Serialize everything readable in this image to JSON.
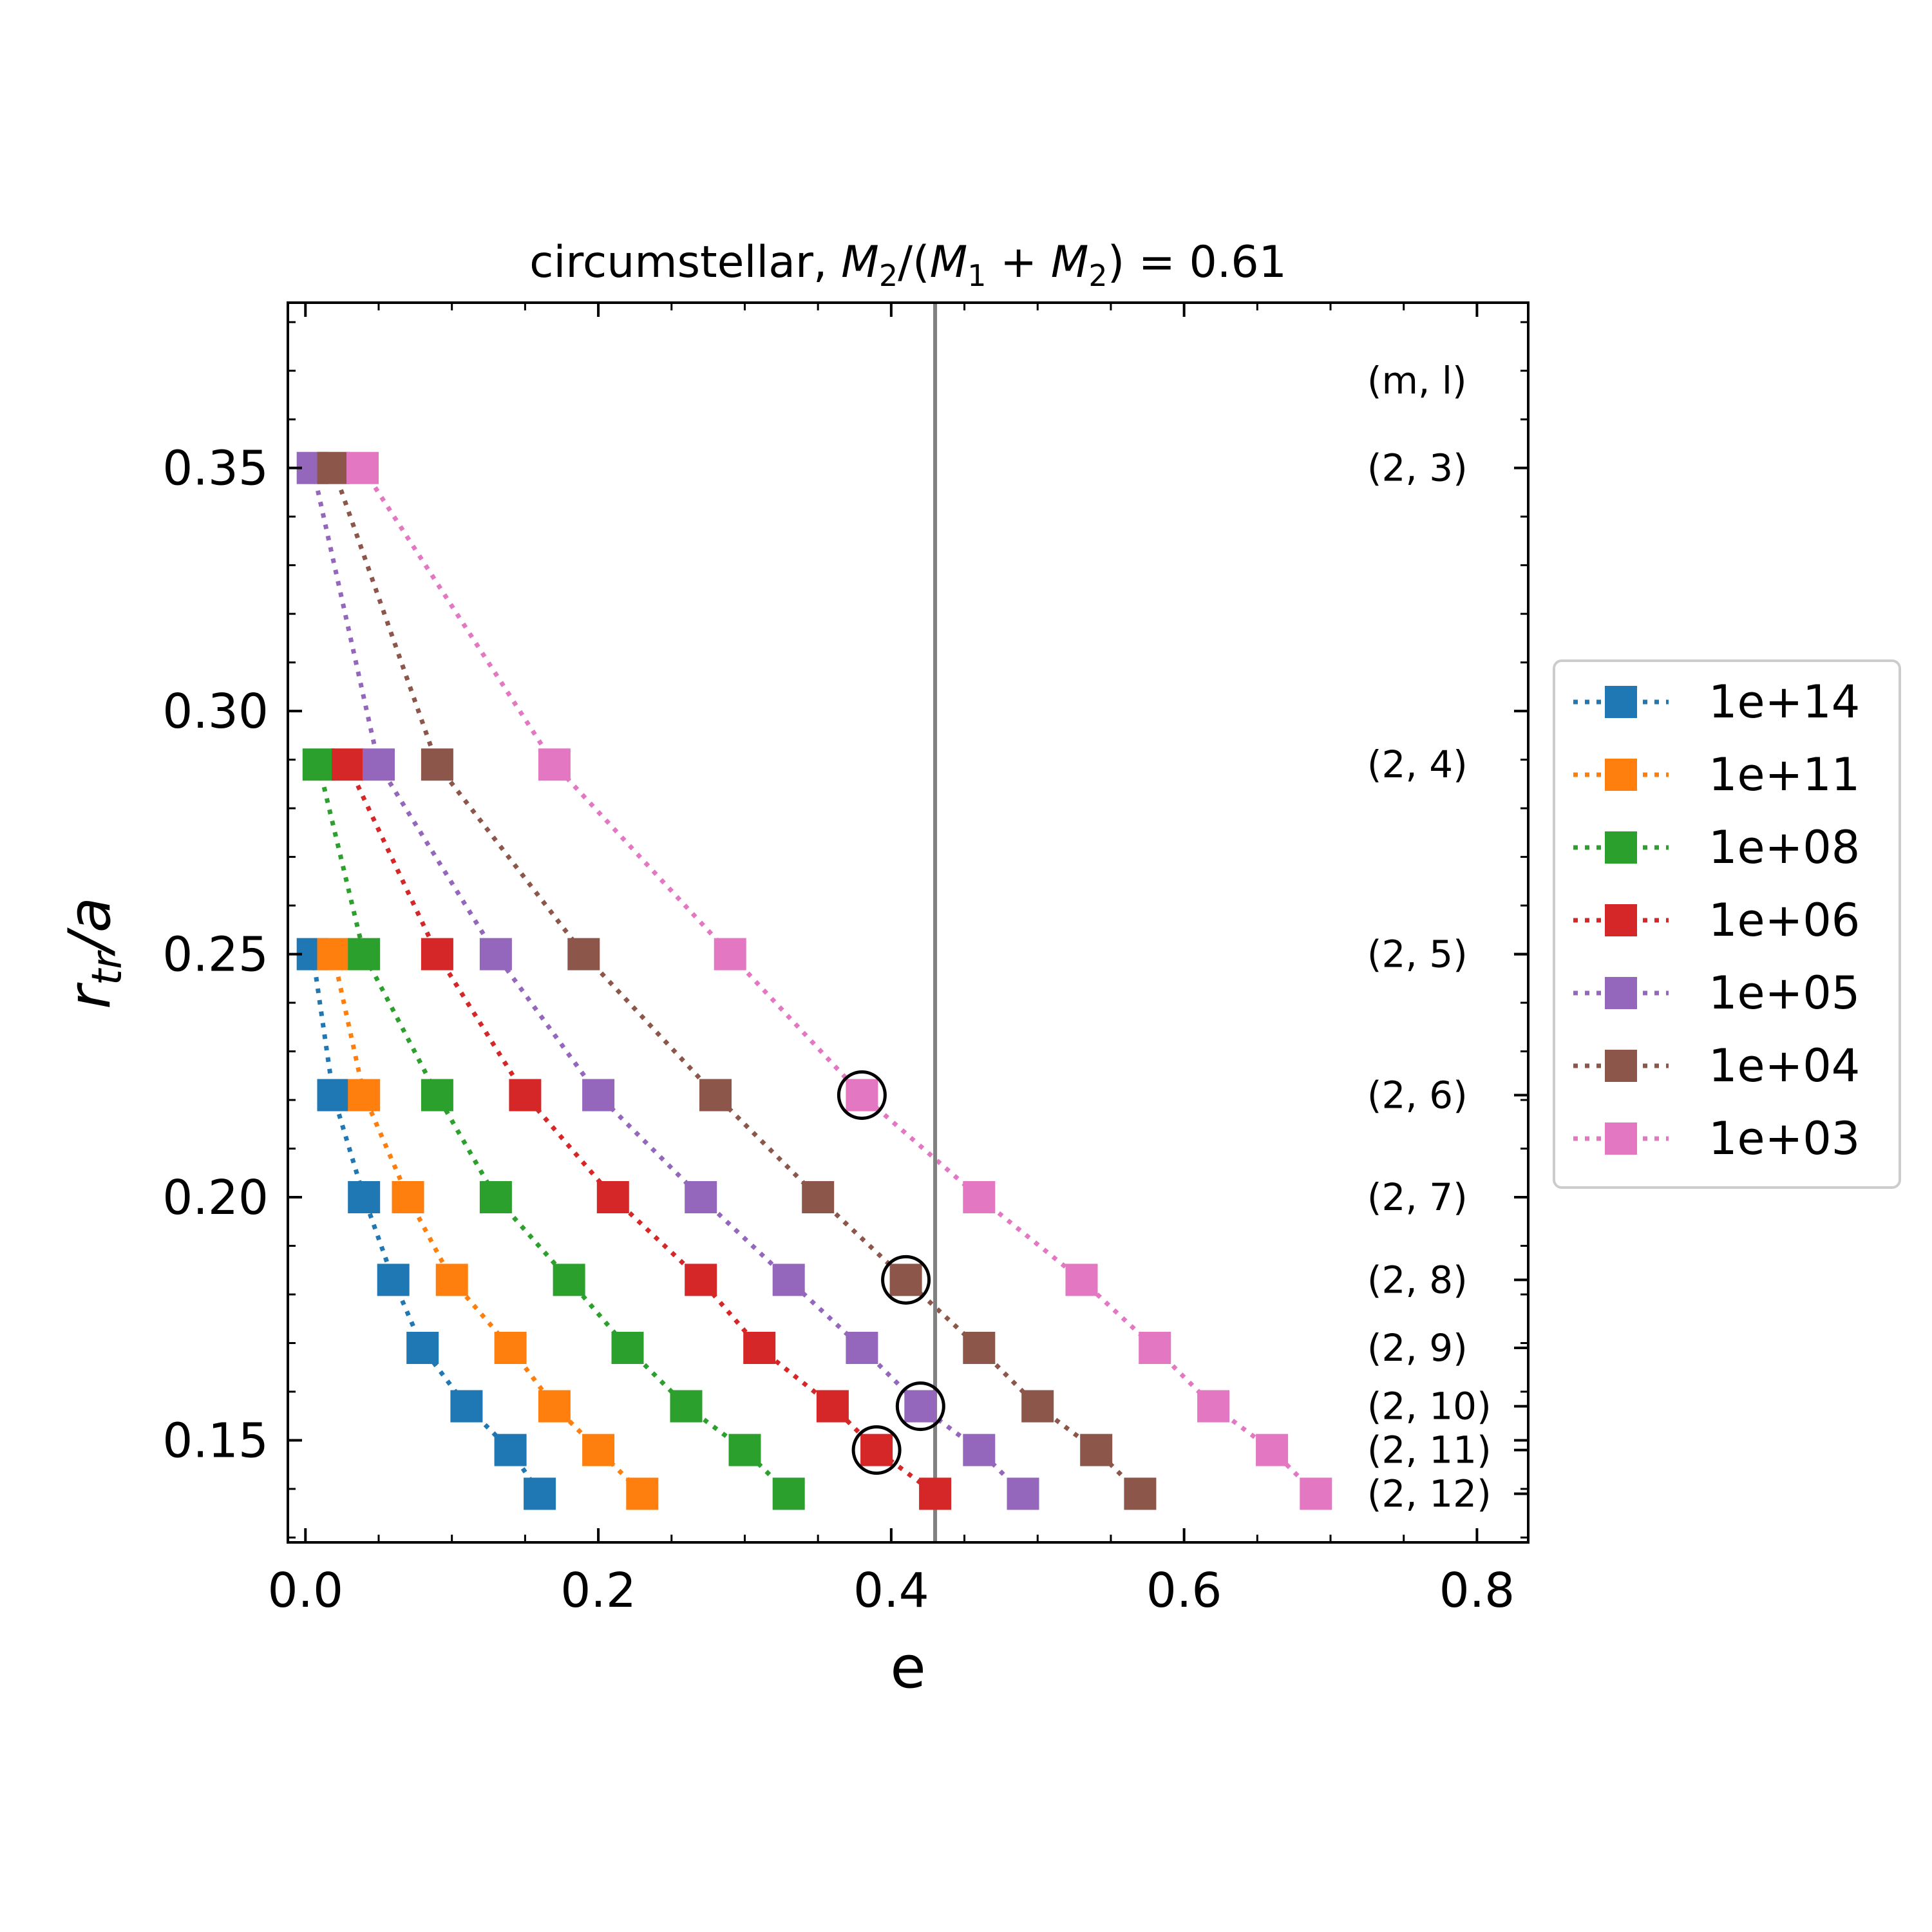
{
  "chart_data": {
    "type": "scatter",
    "title": {
      "prefix": "circumstellar, ",
      "m2": "M",
      "sub2": "2",
      "slash": "/(",
      "m1": "M",
      "sub1": "1",
      "plus": " + ",
      "m3": "M",
      "sub3": "2",
      "suffix": ") = 0.61"
    },
    "xlabel": "e",
    "ylabel": {
      "r": "r",
      "sub": "tr",
      "rest": "/a"
    },
    "xlim": [
      -0.012,
      0.835
    ],
    "ylim": [
      0.129,
      0.384
    ],
    "xticks": [
      0.0,
      0.2,
      0.4,
      0.6,
      0.8
    ],
    "xtick_labels": [
      "0.0",
      "0.2",
      "0.4",
      "0.6",
      "0.8"
    ],
    "yticks": [
      0.15,
      0.2,
      0.25,
      0.3,
      0.35
    ],
    "ytick_labels": [
      "0.15",
      "0.20",
      "0.25",
      "0.30",
      "0.35"
    ],
    "vline": {
      "x": 0.43,
      "color": "#808080"
    },
    "ml_header": "(m, l)",
    "ml_labels": [
      {
        "y": 0.35,
        "text": "(2, 3)"
      },
      {
        "y": 0.289,
        "text": "(2, 4)"
      },
      {
        "y": 0.25,
        "text": "(2, 5)"
      },
      {
        "y": 0.221,
        "text": "(2, 6)"
      },
      {
        "y": 0.2,
        "text": "(2, 7)"
      },
      {
        "y": 0.183,
        "text": "(2, 8)"
      },
      {
        "y": 0.169,
        "text": "(2, 9)"
      },
      {
        "y": 0.157,
        "text": "(2, 10)"
      },
      {
        "y": 0.148,
        "text": "(2, 11)"
      },
      {
        "y": 0.139,
        "text": "(2, 12)"
      }
    ],
    "ml_header_y": 0.368,
    "ml_x": 0.725,
    "y_levels": [
      0.25,
      0.221,
      0.2,
      0.183,
      0.169,
      0.157,
      0.148,
      0.139
    ],
    "legend_placement": "right",
    "series": [
      {
        "name": "1e+14",
        "color": "#1f77b4",
        "x": [
          0.005,
          0.019,
          0.04,
          0.06,
          0.08,
          0.11,
          0.14,
          0.16
        ],
        "y": [
          0.25,
          0.221,
          0.2,
          0.183,
          0.169,
          0.157,
          0.148,
          0.139
        ]
      },
      {
        "name": "1e+11",
        "color": "#ff7f0e",
        "x": [
          0.019,
          0.04,
          0.07,
          0.1,
          0.14,
          0.17,
          0.2,
          0.23
        ],
        "y": [
          0.25,
          0.221,
          0.2,
          0.183,
          0.169,
          0.157,
          0.148,
          0.139
        ]
      },
      {
        "name": "1e+08",
        "color": "#2ca02c",
        "x": [
          0.009,
          0.04,
          0.09,
          0.13,
          0.18,
          0.22,
          0.26,
          0.3,
          0.33
        ],
        "y": [
          0.289,
          0.25,
          0.221,
          0.2,
          0.183,
          0.169,
          0.157,
          0.148,
          0.139
        ]
      },
      {
        "name": "1e+06",
        "color": "#d62728",
        "x": [
          0.029,
          0.09,
          0.15,
          0.21,
          0.27,
          0.31,
          0.36,
          0.39,
          0.43
        ],
        "y": [
          0.289,
          0.25,
          0.221,
          0.2,
          0.183,
          0.169,
          0.157,
          0.148,
          0.139
        ]
      },
      {
        "name": "1e+05",
        "color": "#9467bd",
        "x": [
          0.005,
          0.05,
          0.13,
          0.2,
          0.27,
          0.33,
          0.38,
          0.42,
          0.46,
          0.49
        ],
        "y": [
          0.35,
          0.289,
          0.25,
          0.221,
          0.2,
          0.183,
          0.169,
          0.157,
          0.148,
          0.139
        ]
      },
      {
        "name": "1e+04",
        "color": "#8c564b",
        "x": [
          0.019,
          0.09,
          0.19,
          0.28,
          0.35,
          0.41,
          0.46,
          0.5,
          0.54,
          0.57
        ],
        "y": [
          0.35,
          0.289,
          0.25,
          0.221,
          0.2,
          0.183,
          0.169,
          0.157,
          0.148,
          0.139
        ]
      },
      {
        "name": "1e+03",
        "color": "#e377c2",
        "x": [
          0.039,
          0.17,
          0.29,
          0.38,
          0.46,
          0.53,
          0.58,
          0.62,
          0.66,
          0.69
        ],
        "y": [
          0.35,
          0.289,
          0.25,
          0.221,
          0.2,
          0.183,
          0.169,
          0.157,
          0.148,
          0.139
        ]
      }
    ],
    "circled_points": [
      {
        "x": 0.38,
        "y": 0.221
      },
      {
        "x": 0.41,
        "y": 0.183
      },
      {
        "x": 0.42,
        "y": 0.157
      },
      {
        "x": 0.39,
        "y": 0.148
      }
    ],
    "grid": false
  }
}
